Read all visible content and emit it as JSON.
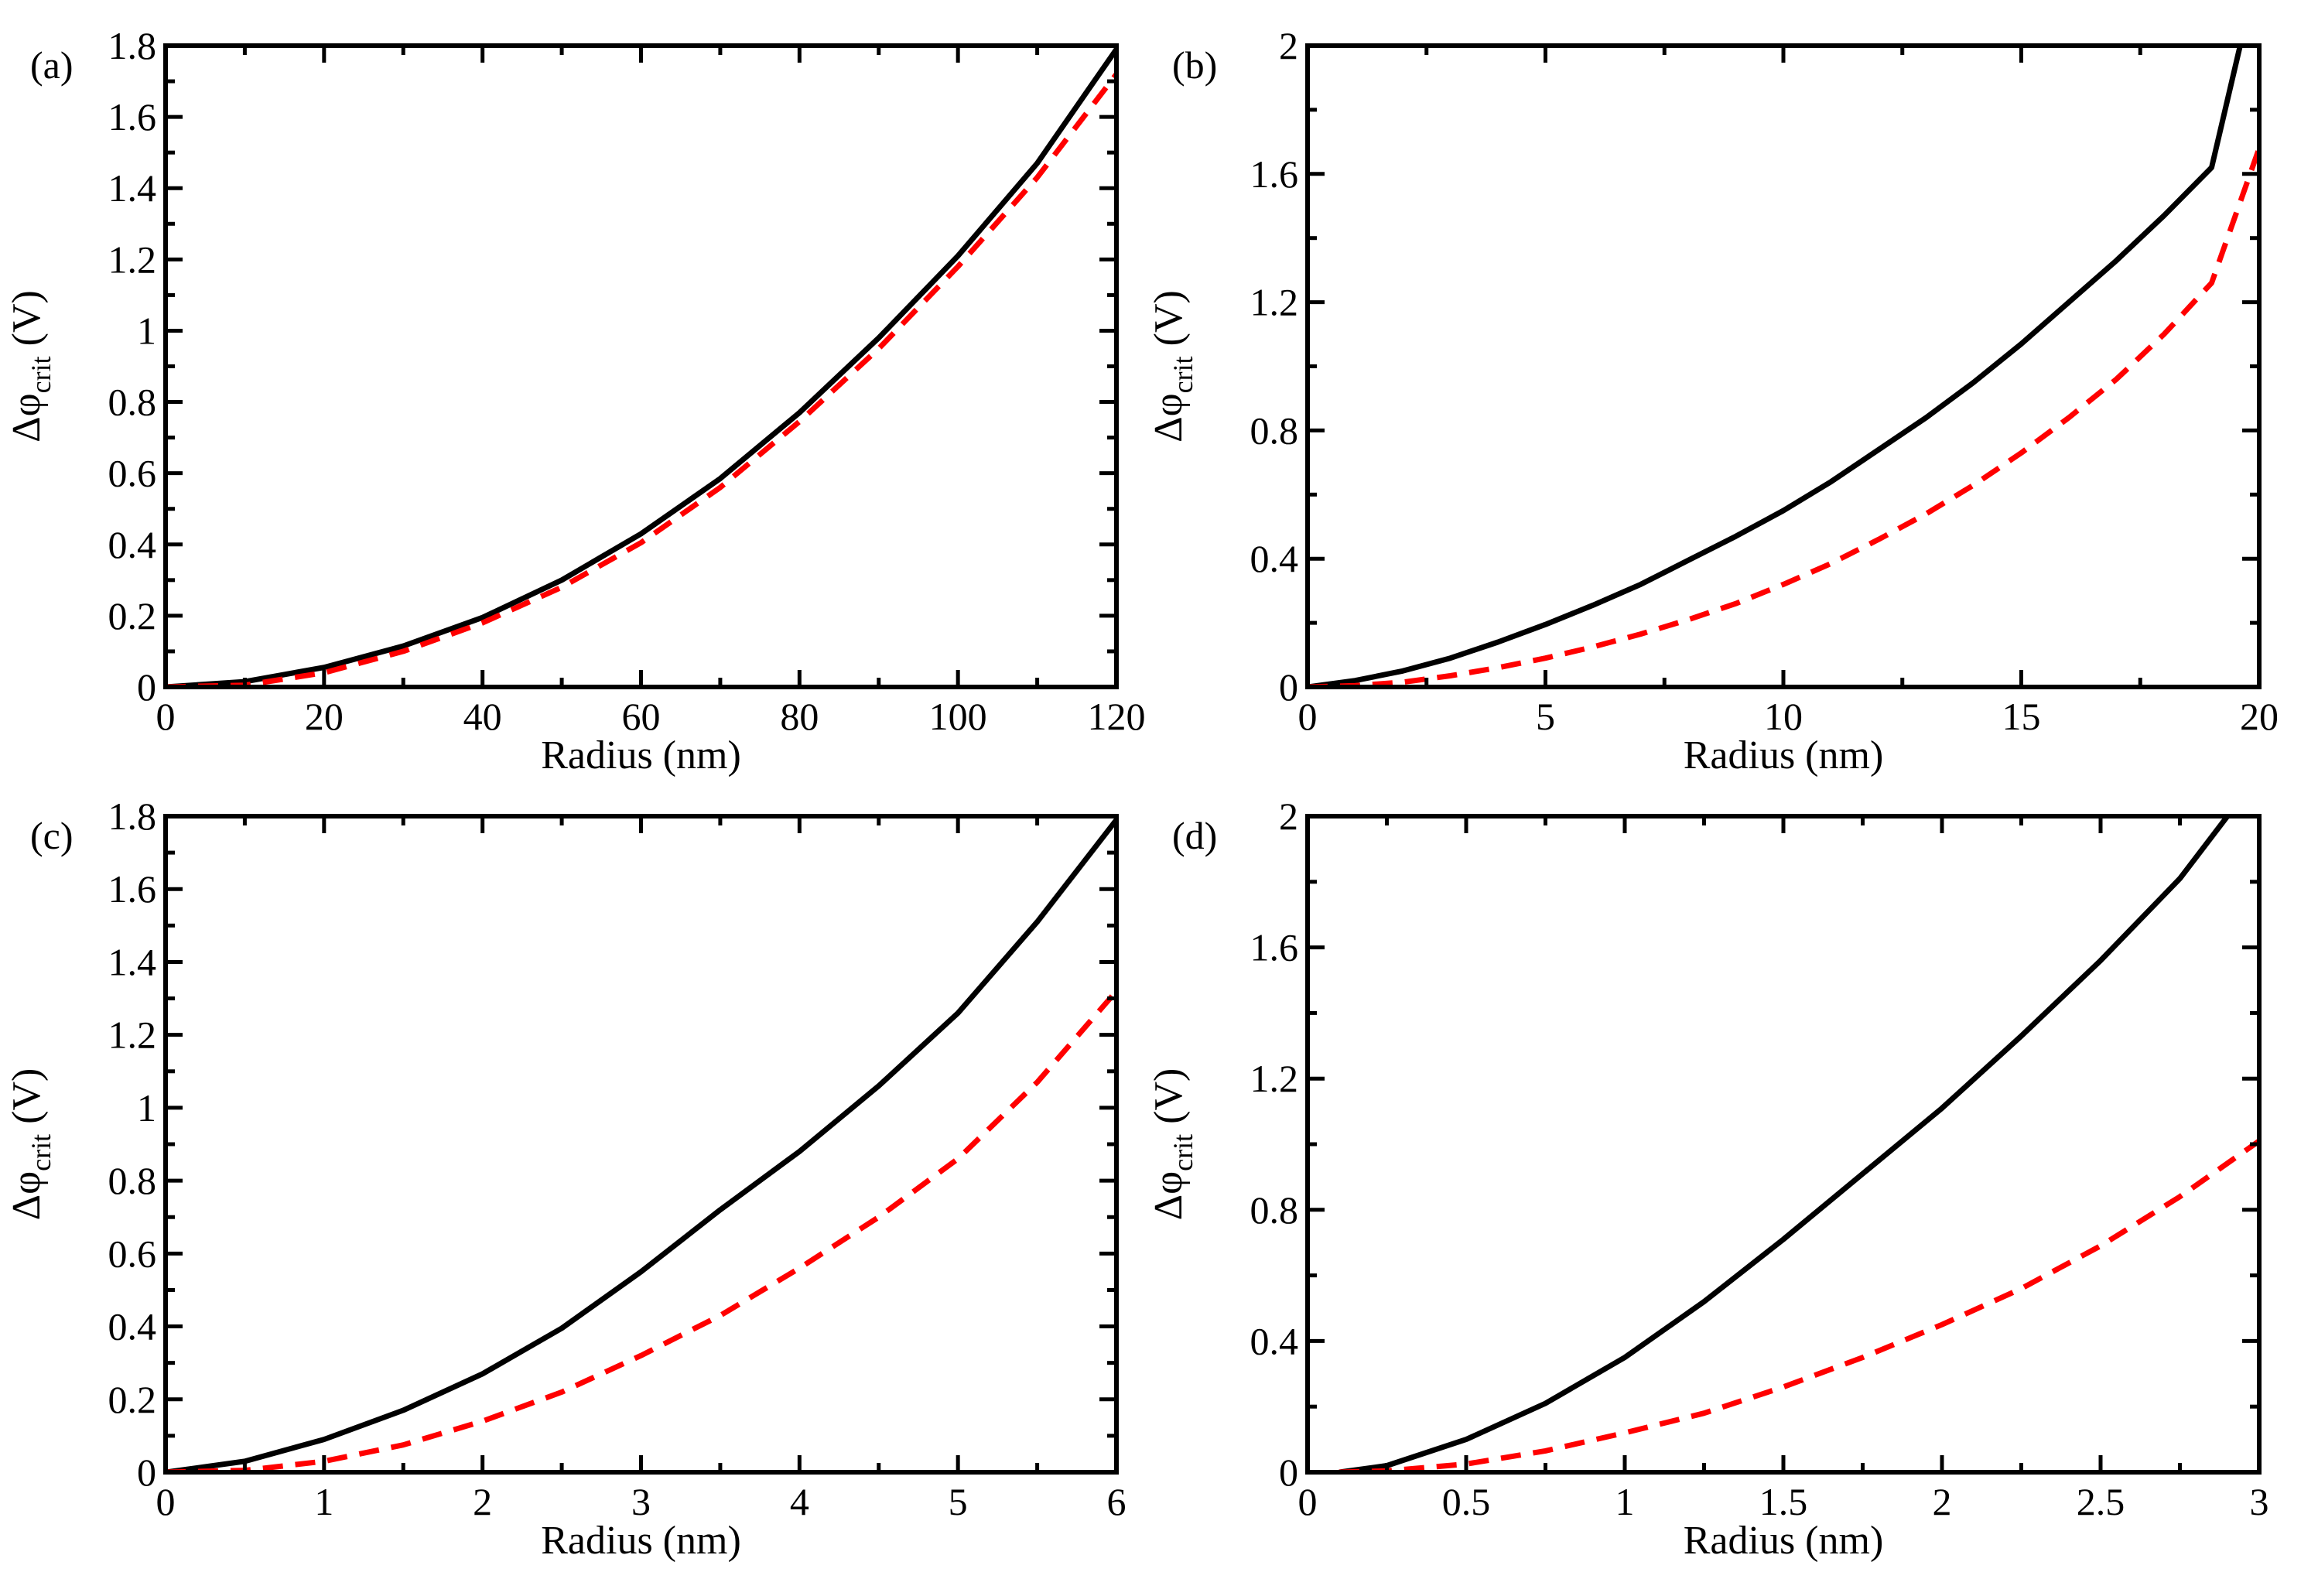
{
  "chart_data": [
    {
      "type": "line",
      "panel_label": "(a)",
      "xlabel": "Radius (nm)",
      "ylabel": {
        "main": "Δφ",
        "sub": "crit",
        "unit": " (V)"
      },
      "xlim": [
        0,
        120
      ],
      "ylim": [
        0,
        1.8
      ],
      "x_ticks": [
        0,
        20,
        40,
        60,
        80,
        100,
        120
      ],
      "x_tick_labels": [
        "0",
        "20",
        "40",
        "60",
        "80",
        "100",
        "120"
      ],
      "y_ticks": [
        0,
        0.2,
        0.4,
        0.6,
        0.8,
        1,
        1.2,
        1.4,
        1.6,
        1.8
      ],
      "y_tick_labels": [
        "0",
        "0.2",
        "0.4",
        "0.6",
        "0.8",
        "1",
        "1.2",
        "1.4",
        "1.6",
        "1.8"
      ],
      "grid": false,
      "series": [
        {
          "name": "solid black",
          "color": "#000000",
          "dash": "solid",
          "x": [
            0,
            10,
            20,
            30,
            40,
            50,
            60,
            70,
            80,
            90,
            100,
            110,
            120
          ],
          "y": [
            0,
            0.015,
            0.055,
            0.115,
            0.195,
            0.3,
            0.43,
            0.585,
            0.77,
            0.98,
            1.21,
            1.47,
            1.79
          ]
        },
        {
          "name": "dashed red",
          "color": "#ff0000",
          "dash": "dashed",
          "x": [
            0,
            10,
            20,
            30,
            40,
            50,
            60,
            70,
            80,
            90,
            100,
            110,
            120
          ],
          "y": [
            0,
            0.005,
            0.04,
            0.1,
            0.18,
            0.28,
            0.405,
            0.56,
            0.745,
            0.95,
            1.18,
            1.43,
            1.72
          ]
        }
      ]
    },
    {
      "type": "line",
      "panel_label": "(b)",
      "xlabel": "Radius (nm)",
      "ylabel": {
        "main": "Δφ",
        "sub": "crit",
        "unit": " (V)"
      },
      "xlim": [
        0,
        20
      ],
      "ylim": [
        0,
        2
      ],
      "x_ticks": [
        0,
        5,
        10,
        15,
        20
      ],
      "x_tick_labels": [
        "0",
        "5",
        "10",
        "15",
        "20"
      ],
      "y_ticks": [
        0,
        0.4,
        0.8,
        1.2,
        1.6,
        2
      ],
      "y_tick_labels": [
        "0",
        "0.4",
        "0.8",
        "1.2",
        "1.6",
        "2"
      ],
      "grid": false,
      "series": [
        {
          "name": "solid black",
          "color": "#000000",
          "dash": "solid",
          "x": [
            0,
            1,
            2,
            3,
            4,
            5,
            6,
            7,
            8,
            9,
            10,
            11,
            12,
            13,
            14,
            15,
            16,
            17,
            18,
            19,
            19.6
          ],
          "y": [
            0,
            0.02,
            0.05,
            0.09,
            0.14,
            0.195,
            0.255,
            0.32,
            0.395,
            0.47,
            0.55,
            0.64,
            0.74,
            0.84,
            0.95,
            1.07,
            1.2,
            1.33,
            1.47,
            1.62,
            2.0
          ]
        },
        {
          "name": "dashed red",
          "color": "#ff0000",
          "dash": "dashed",
          "x": [
            0,
            1,
            2,
            3,
            4,
            5,
            6,
            7,
            8,
            9,
            10,
            11,
            12,
            13,
            14,
            15,
            16,
            17,
            18,
            19,
            20
          ],
          "y": [
            0,
            0.004,
            0.015,
            0.035,
            0.06,
            0.09,
            0.125,
            0.165,
            0.21,
            0.26,
            0.32,
            0.385,
            0.46,
            0.54,
            0.63,
            0.73,
            0.84,
            0.96,
            1.1,
            1.26,
            1.68
          ]
        }
      ]
    },
    {
      "type": "line",
      "panel_label": "(c)",
      "xlabel": "Radius (nm)",
      "ylabel": {
        "main": "Δφ",
        "sub": "crit",
        "unit": " (V)"
      },
      "xlim": [
        0,
        6
      ],
      "ylim": [
        0,
        1.8
      ],
      "x_ticks": [
        0,
        1,
        2,
        3,
        4,
        5,
        6
      ],
      "x_tick_labels": [
        "0",
        "1",
        "2",
        "3",
        "4",
        "5",
        "6"
      ],
      "y_ticks": [
        0,
        0.2,
        0.4,
        0.6,
        0.8,
        1,
        1.2,
        1.4,
        1.6,
        1.8
      ],
      "y_tick_labels": [
        "0",
        "0.2",
        "0.4",
        "0.6",
        "0.8",
        "1",
        "1.2",
        "1.4",
        "1.6",
        "1.8"
      ],
      "grid": false,
      "series": [
        {
          "name": "solid black",
          "color": "#000000",
          "dash": "solid",
          "x": [
            0,
            0.5,
            1,
            1.5,
            2,
            2.5,
            3,
            3.5,
            4,
            4.5,
            5,
            5.5,
            6
          ],
          "y": [
            0,
            0.03,
            0.09,
            0.17,
            0.27,
            0.395,
            0.55,
            0.72,
            0.88,
            1.06,
            1.26,
            1.51,
            1.79
          ]
        },
        {
          "name": "dashed red",
          "color": "#ff0000",
          "dash": "dashed",
          "x": [
            0,
            0.5,
            1,
            1.5,
            2,
            2.5,
            3,
            3.5,
            4,
            4.5,
            5,
            5.5,
            6
          ],
          "y": [
            0,
            0.005,
            0.03,
            0.075,
            0.14,
            0.22,
            0.32,
            0.43,
            0.56,
            0.7,
            0.86,
            1.07,
            1.32
          ]
        }
      ]
    },
    {
      "type": "line",
      "panel_label": "(d)",
      "xlabel": "Radius (nm)",
      "ylabel": {
        "main": "Δφ",
        "sub": "crit",
        "unit": " (V)"
      },
      "xlim": [
        0,
        3
      ],
      "ylim": [
        0,
        2
      ],
      "x_ticks": [
        0,
        0.5,
        1,
        1.5,
        2,
        2.5,
        3
      ],
      "x_tick_labels": [
        "0",
        "0.5",
        "1",
        "1.5",
        "2",
        "2.5",
        "3"
      ],
      "y_ticks": [
        0,
        0.4,
        0.8,
        1.2,
        1.6,
        2
      ],
      "y_tick_labels": [
        "0",
        "0.4",
        "0.8",
        "1.2",
        "1.6",
        "2"
      ],
      "grid": false,
      "series": [
        {
          "name": "solid black",
          "color": "#000000",
          "dash": "solid",
          "x": [
            0.1,
            0.25,
            0.5,
            0.75,
            1,
            1.25,
            1.5,
            1.75,
            2,
            2.25,
            2.5,
            2.75,
            2.9
          ],
          "y": [
            0,
            0.02,
            0.1,
            0.21,
            0.35,
            0.52,
            0.71,
            0.91,
            1.11,
            1.33,
            1.56,
            1.81,
            2.0
          ]
        },
        {
          "name": "dashed red",
          "color": "#ff0000",
          "dash": "dashed",
          "x": [
            0.1,
            0.25,
            0.5,
            0.75,
            1,
            1.25,
            1.5,
            1.75,
            2,
            2.25,
            2.5,
            2.75,
            3
          ],
          "y": [
            0,
            0.004,
            0.025,
            0.065,
            0.12,
            0.18,
            0.26,
            0.35,
            0.45,
            0.56,
            0.69,
            0.84,
            1.01
          ]
        }
      ]
    }
  ]
}
